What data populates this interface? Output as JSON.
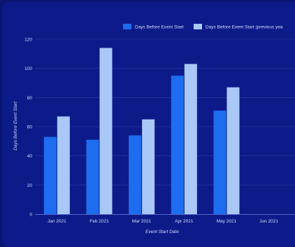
{
  "chart_data": {
    "type": "bar",
    "title": "",
    "xlabel": "Event Start Date",
    "ylabel": "Days Before Event Start",
    "categories": [
      "Jan 2021",
      "Feb 2021",
      "Mar 2021",
      "Apr 2021",
      "May 2021",
      "Jun 2021"
    ],
    "series": [
      {
        "name": "Days Before Event Start",
        "values": [
          53,
          51,
          54,
          95,
          71,
          null
        ],
        "color": "#1e6cf0"
      },
      {
        "name": "Days Before Event Start (previous yea",
        "values": [
          67,
          114,
          65,
          103,
          87,
          null
        ],
        "color": "#a9c8f7"
      }
    ],
    "ylim": [
      0,
      120
    ],
    "yticks": [
      "0",
      "20",
      "40",
      "60",
      "80",
      "100",
      "120"
    ],
    "grid": true,
    "legend": "top-right"
  },
  "colors": {
    "background": "#0d1b8a",
    "grid": "#2535a0",
    "text": "#d6ddff"
  }
}
